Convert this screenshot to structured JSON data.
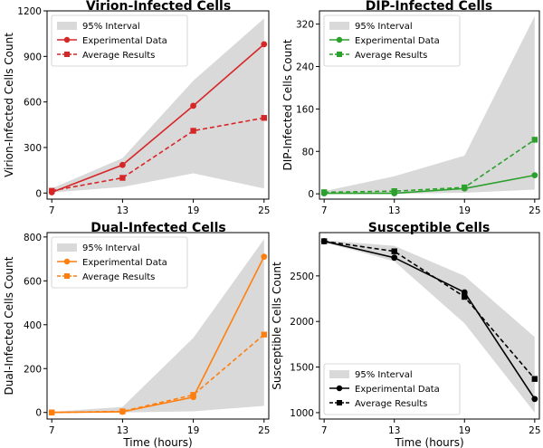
{
  "chart_data": [
    {
      "type": "line",
      "title": "Virion-Infected Cells",
      "ylabel": "Virion-Infected Cells Count",
      "xlabel": "",
      "x": [
        7,
        13,
        19,
        25
      ],
      "xticks": [
        "7",
        "13",
        "19",
        "25"
      ],
      "yticks": [
        0,
        300,
        600,
        900,
        1200
      ],
      "ylim": [
        -40,
        1200
      ],
      "color": "#d62728",
      "legend_position": "top-left",
      "interval": {
        "name": "95% Interval",
        "lower": [
          3,
          40,
          130,
          30
        ],
        "upper": [
          30,
          230,
          740,
          1150
        ]
      },
      "series": [
        {
          "name": "Experimental Data",
          "values": [
            5,
            185,
            575,
            980
          ],
          "style": "solid",
          "marker": "circle"
        },
        {
          "name": "Average Results",
          "values": [
            15,
            100,
            410,
            495
          ],
          "style": "dashed",
          "marker": "square"
        }
      ]
    },
    {
      "type": "line",
      "title": "DIP-Infected Cells",
      "ylabel": "DIP-Infected Cells Count",
      "xlabel": "",
      "x": [
        7,
        13,
        19,
        25
      ],
      "xticks": [
        "7",
        "13",
        "19",
        "25"
      ],
      "yticks": [
        0,
        80,
        160,
        240,
        320
      ],
      "ylim": [
        -10,
        345
      ],
      "color": "#2ca02c",
      "legend_position": "top-left",
      "interval": {
        "name": "95% Interval",
        "lower": [
          0,
          0,
          2,
          8
        ],
        "upper": [
          5,
          33,
          72,
          335
        ]
      },
      "series": [
        {
          "name": "Experimental Data",
          "values": [
            1,
            1,
            10,
            35
          ],
          "style": "solid",
          "marker": "circle"
        },
        {
          "name": "Average Results",
          "values": [
            3,
            5,
            12,
            102
          ],
          "style": "dashed",
          "marker": "square"
        }
      ]
    },
    {
      "type": "line",
      "title": "Dual-Infected Cells",
      "ylabel": "Dual-Infected Cells Count",
      "xlabel": "Time (hours)",
      "x": [
        7,
        13,
        19,
        25
      ],
      "xticks": [
        "7",
        "13",
        "19",
        "25"
      ],
      "yticks": [
        0,
        200,
        400,
        600,
        800
      ],
      "ylim": [
        -30,
        820
      ],
      "color": "#ff7f0e",
      "legend_position": "top-left",
      "interval": {
        "name": "95% Interval",
        "lower": [
          0,
          0,
          5,
          30
        ],
        "upper": [
          3,
          25,
          340,
          790
        ]
      },
      "series": [
        {
          "name": "Experimental Data",
          "values": [
            0,
            3,
            70,
            710
          ],
          "style": "solid",
          "marker": "circle"
        },
        {
          "name": "Average Results",
          "values": [
            0,
            5,
            80,
            355
          ],
          "style": "dashed",
          "marker": "square"
        }
      ]
    },
    {
      "type": "line",
      "title": "Susceptible Cells",
      "ylabel": "Susceptible Cells Count",
      "xlabel": "Time (hours)",
      "x": [
        7,
        13,
        19,
        25
      ],
      "xticks": [
        "7",
        "13",
        "19",
        "25"
      ],
      "yticks": [
        1000,
        1500,
        2000,
        2500
      ],
      "ylim": [
        930,
        2975
      ],
      "color": "#000000",
      "legend_position": "bottom-left",
      "interval": {
        "name": "95% Interval",
        "lower": [
          2870,
          2660,
          1980,
          1000
        ],
        "upper": [
          2890,
          2830,
          2500,
          1830
        ]
      },
      "series": [
        {
          "name": "Experimental Data",
          "values": [
            2880,
            2700,
            2320,
            1150
          ],
          "style": "solid",
          "marker": "circle"
        },
        {
          "name": "Average Results",
          "values": [
            2880,
            2770,
            2270,
            1370
          ],
          "style": "dashed",
          "marker": "square"
        }
      ]
    }
  ]
}
